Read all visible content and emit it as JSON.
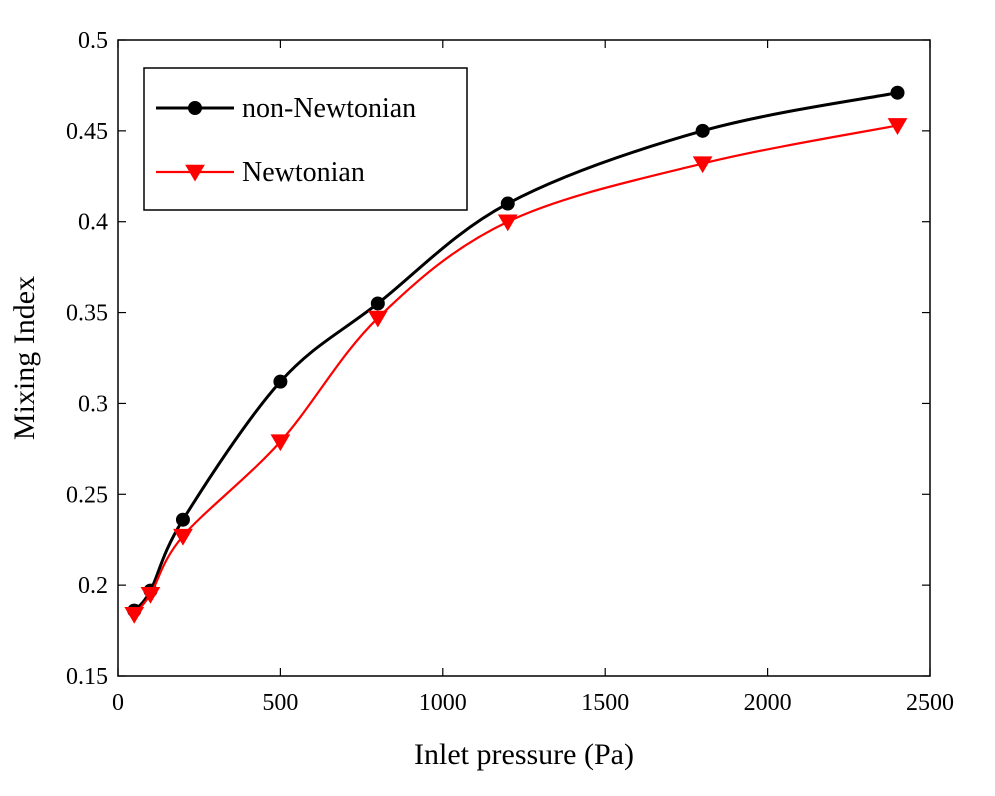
{
  "chart_data": {
    "type": "line",
    "title": "",
    "xlabel": "Inlet pressure (Pa)",
    "ylabel": "Mixing Index",
    "xlim": [
      0,
      2500
    ],
    "ylim": [
      0.15,
      0.5
    ],
    "xticks": [
      0,
      500,
      1000,
      1500,
      2000,
      2500
    ],
    "xtick_labels": [
      "0",
      "500",
      "1000",
      "1500",
      "2000",
      "2500"
    ],
    "yticks": [
      0.15,
      0.2,
      0.25,
      0.3,
      0.35,
      0.4,
      0.45,
      0.5
    ],
    "ytick_labels": [
      "0.15",
      "0.2",
      "0.25",
      "0.3",
      "0.35",
      "0.4",
      "0.45",
      "0.5"
    ],
    "grid": false,
    "legend_position": "top-left",
    "series": [
      {
        "name": "non-Newtonian",
        "color": "#000000",
        "marker": "circle",
        "x": [
          50,
          100,
          200,
          500,
          800,
          1200,
          1800,
          2400
        ],
        "y": [
          0.186,
          0.197,
          0.236,
          0.312,
          0.355,
          0.41,
          0.45,
          0.471
        ]
      },
      {
        "name": "Newtonian",
        "color": "#ff0000",
        "marker": "triangle-down",
        "x": [
          50,
          100,
          200,
          500,
          800,
          1200,
          1800,
          2400
        ],
        "y": [
          0.184,
          0.195,
          0.227,
          0.279,
          0.347,
          0.4,
          0.432,
          0.453
        ]
      }
    ]
  }
}
